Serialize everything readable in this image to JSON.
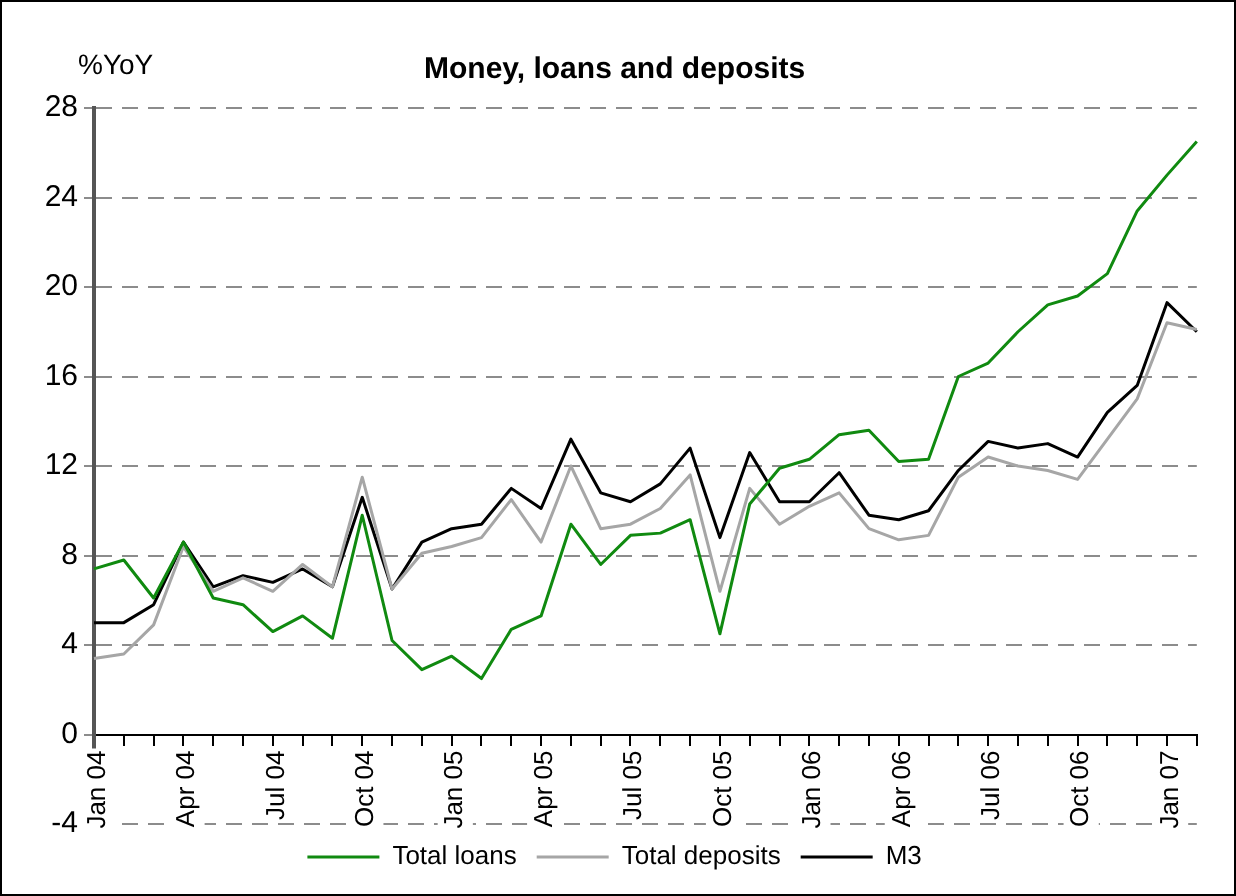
{
  "chart_data": {
    "type": "line",
    "title": "Money, loans and deposits",
    "ylabel": "%YoY",
    "categories": [
      "Jan 04",
      null,
      null,
      "Apr 04",
      null,
      null,
      "Jul 04",
      null,
      null,
      "Oct 04",
      null,
      null,
      "Jan 05",
      null,
      null,
      "Apr 05",
      null,
      null,
      "Jul 05",
      null,
      null,
      "Oct 05",
      null,
      null,
      "Jan 06",
      null,
      null,
      "Apr 06",
      null,
      null,
      "Jul 06",
      null,
      null,
      "Oct 06",
      null,
      null,
      "Jan 07",
      null
    ],
    "series": [
      {
        "name": "Total loans",
        "color": "#108a10",
        "values": [
          7.4,
          7.8,
          6.1,
          8.6,
          6.1,
          5.8,
          4.6,
          5.3,
          4.3,
          9.8,
          4.2,
          2.9,
          3.5,
          2.5,
          4.7,
          5.3,
          9.4,
          7.6,
          8.9,
          9.0,
          9.6,
          4.5,
          10.3,
          11.9,
          12.3,
          13.4,
          13.6,
          12.2,
          12.3,
          16.0,
          16.6,
          18.0,
          19.2,
          19.6,
          20.6,
          23.4,
          25.0,
          26.5
        ]
      },
      {
        "name": "Total deposits",
        "color": "#a6a6a6",
        "values": [
          3.4,
          3.6,
          4.9,
          8.4,
          6.4,
          7.0,
          6.4,
          7.6,
          6.6,
          11.5,
          6.5,
          8.1,
          8.4,
          8.8,
          10.5,
          8.6,
          12.0,
          9.2,
          9.4,
          10.1,
          11.6,
          6.4,
          11.0,
          9.4,
          10.2,
          10.8,
          9.2,
          8.7,
          8.9,
          11.5,
          12.4,
          12.0,
          11.8,
          11.4,
          13.2,
          15.0,
          18.4,
          18.1
        ]
      },
      {
        "name": "M3",
        "color": "#000000",
        "values": [
          5.0,
          5.0,
          5.8,
          8.6,
          6.6,
          7.1,
          6.8,
          7.4,
          6.6,
          10.6,
          6.5,
          8.6,
          9.2,
          9.4,
          11.0,
          10.1,
          13.2,
          10.8,
          10.4,
          11.2,
          12.8,
          8.8,
          12.6,
          10.4,
          10.4,
          11.7,
          9.8,
          9.6,
          10.0,
          11.8,
          13.1,
          12.8,
          13.0,
          12.4,
          14.4,
          15.6,
          19.3,
          18.0
        ]
      }
    ],
    "ylim": [
      -4,
      28
    ],
    "yticks": [
      -4,
      0,
      4,
      8,
      12,
      16,
      20,
      24,
      28
    ],
    "grid": "y",
    "legend": "bottom",
    "marker": "none",
    "line_style": "solid"
  }
}
